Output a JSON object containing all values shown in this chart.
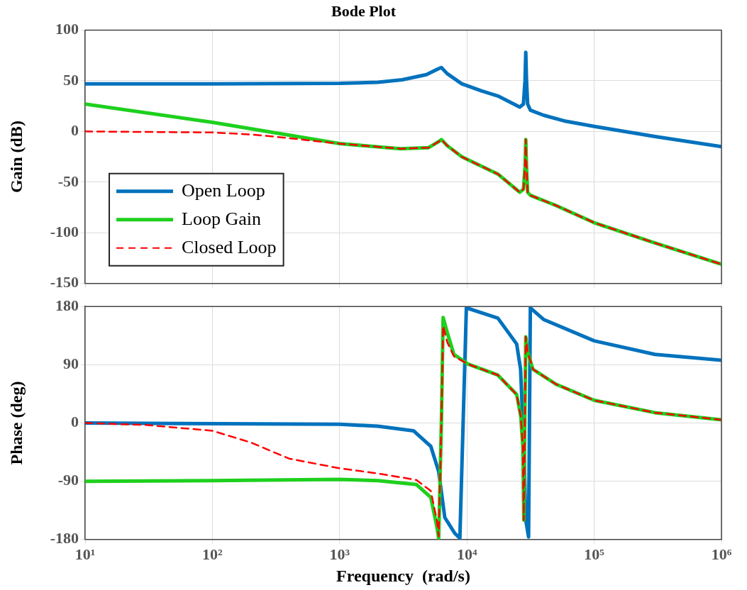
{
  "chart_data": [
    {
      "type": "line",
      "title": "Bode Plot",
      "ylabel": "Gain (dB)",
      "log": "x",
      "xlim": [
        10,
        1000000
      ],
      "xticks": [
        10,
        100,
        1000,
        10000,
        100000,
        1000000
      ],
      "ylim": [
        -150,
        100
      ],
      "yticks": [
        -150,
        -100,
        -50,
        0,
        50,
        100
      ],
      "grid": true,
      "legend": "bottom left",
      "tick_labels": "y",
      "series": [
        {
          "name": "Open Loop",
          "color": "#0072bd",
          "line_style": "solid",
          "x": [
            10,
            100,
            1000,
            2000,
            3100,
            4800,
            6000,
            6300,
            7000,
            9100,
            13000,
            17500,
            26000,
            27800,
            28600,
            29000,
            29400,
            30000,
            31500,
            40000,
            60000,
            100000,
            300000,
            1000000
          ],
          "values": [
            47,
            47,
            47.5,
            48.5,
            51,
            56,
            62,
            63,
            57,
            47,
            40,
            35,
            24,
            27,
            50,
            78,
            50,
            27,
            21,
            16,
            10,
            5,
            -5,
            -15
          ]
        },
        {
          "name": "Loop Gain",
          "color": "#1ed01e",
          "line_style": "solid",
          "x": [
            10,
            100,
            1000,
            3000,
            5000,
            6000,
            6300,
            7000,
            9100,
            17500,
            26000,
            27800,
            28600,
            29000,
            29400,
            30000,
            31500,
            50000,
            100000,
            300000,
            1000000
          ],
          "values": [
            27,
            9,
            -12,
            -17,
            -16,
            -10,
            -8,
            -14,
            -25,
            -42,
            -60,
            -57,
            -35,
            -8,
            -35,
            -60,
            -63,
            -73,
            -90,
            -110,
            -131
          ]
        },
        {
          "name": "Closed Loop",
          "color": "#ff0000",
          "line_style": "dashed",
          "x": [
            10,
            100,
            200,
            300,
            1000,
            3000,
            5000,
            6000,
            6300,
            7000,
            9100,
            17500,
            26000,
            27800,
            28600,
            29000,
            29400,
            30000,
            31500,
            50000,
            100000,
            300000,
            1000000
          ],
          "values": [
            0,
            -1,
            -3,
            -5,
            -12,
            -17,
            -16,
            -10,
            -8,
            -14,
            -25,
            -42,
            -60,
            -57,
            -35,
            -8,
            -35,
            -60,
            -63,
            -73,
            -90,
            -110,
            -131
          ]
        }
      ]
    },
    {
      "type": "line",
      "xlabel": "Frequency  (rad/s)",
      "ylabel": "Phase (deg)",
      "log": "x",
      "xlim": [
        10,
        1000000
      ],
      "xticks": [
        {
          "value": 10,
          "label": "10¹"
        },
        {
          "value": 100,
          "label": "10²"
        },
        {
          "value": 1000,
          "label": "10³"
        },
        {
          "value": 10000,
          "label": "10⁴"
        },
        {
          "value": 100000,
          "label": "10⁵"
        },
        {
          "value": 1000000,
          "label": "10⁶"
        }
      ],
      "ylim": [
        -180,
        180
      ],
      "yticks": [
        -180,
        -90,
        0,
        90,
        180
      ],
      "grid": true,
      "series": [
        {
          "color": "#0072bd",
          "line_style": "solid",
          "x": [
            10,
            1000,
            2000,
            3800,
            5200,
            6000,
            6700,
            8000,
            8800,
            9900,
            17500,
            24600,
            26400,
            28000,
            29000,
            30500,
            31500,
            40000,
            100000,
            300000,
            1000000
          ],
          "values": [
            0,
            -2,
            -5,
            -12,
            -36,
            -75,
            -146,
            -170,
            -178,
            178,
            162,
            122,
            83,
            -36,
            -150,
            -176,
            178,
            160,
            127,
            106,
            97
          ]
        },
        {
          "color": "#1ed01e",
          "line_style": "solid",
          "x": [
            10,
            100,
            1000,
            2000,
            4000,
            5200,
            5800,
            6000,
            6300,
            6500,
            7000,
            7900,
            10200,
            17500,
            24600,
            26500,
            27500,
            28000,
            28500,
            29000,
            30000,
            33000,
            50000,
            100000,
            300000,
            1000000
          ],
          "values": [
            -90,
            -89,
            -87,
            -89,
            -95,
            -115,
            -160,
            -178,
            0,
            163,
            140,
            106,
            91,
            74,
            44,
            10,
            -36,
            -150,
            0,
            133,
            110,
            83,
            60,
            35,
            16,
            5
          ]
        },
        {
          "color": "#ff0000",
          "line_style": "dashed",
          "x": [
            10,
            30,
            100,
            200,
            400,
            1000,
            2000,
            4000,
            5200,
            5800,
            6000,
            6300,
            6500,
            7000,
            7900,
            10200,
            17500,
            24600,
            26500,
            27500,
            28000,
            28500,
            29000,
            30000,
            33000,
            50000,
            100000,
            300000,
            1000000
          ],
          "values": [
            0,
            -3,
            -12,
            -30,
            -55,
            -70,
            -78,
            -88,
            -105,
            -150,
            -175,
            0,
            150,
            125,
            103,
            91,
            74,
            44,
            10,
            -36,
            -150,
            0,
            133,
            110,
            83,
            60,
            35,
            16,
            5
          ]
        }
      ]
    }
  ]
}
